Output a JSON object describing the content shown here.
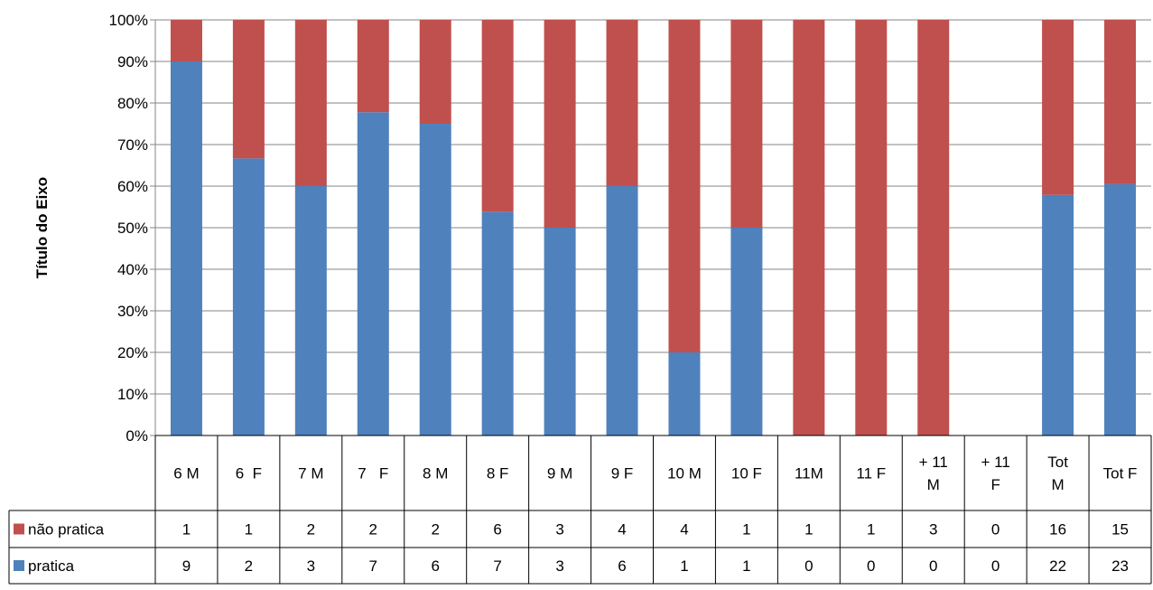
{
  "chart_data": {
    "type": "bar",
    "stacked": "percent",
    "title": "",
    "ylabel": "Título do Eixo",
    "xlabel": "",
    "ylim": [
      0,
      100
    ],
    "yticks": [
      "0%",
      "10%",
      "20%",
      "30%",
      "40%",
      "50%",
      "60%",
      "70%",
      "80%",
      "90%",
      "100%"
    ],
    "grid": true,
    "legend": "data-table",
    "categories": [
      [
        "6 M"
      ],
      [
        "6  F"
      ],
      [
        "7 M"
      ],
      [
        "7   F"
      ],
      [
        "8 M"
      ],
      [
        "8 F"
      ],
      [
        "9 M"
      ],
      [
        "9 F"
      ],
      [
        "10 M"
      ],
      [
        "10 F"
      ],
      [
        "11M"
      ],
      [
        "11 F"
      ],
      [
        "+ 11",
        "M"
      ],
      [
        "+ 11",
        "F"
      ],
      [
        "Tot",
        "M"
      ],
      [
        "Tot F"
      ]
    ],
    "series": [
      {
        "name": "não pratica",
        "color": "#c0504d",
        "values": [
          1,
          1,
          2,
          2,
          2,
          6,
          3,
          4,
          4,
          1,
          1,
          1,
          3,
          0,
          16,
          15
        ]
      },
      {
        "name": "pratica",
        "color": "#4f81bd",
        "values": [
          9,
          2,
          3,
          7,
          6,
          7,
          3,
          6,
          1,
          1,
          0,
          0,
          0,
          0,
          22,
          23
        ]
      }
    ]
  }
}
